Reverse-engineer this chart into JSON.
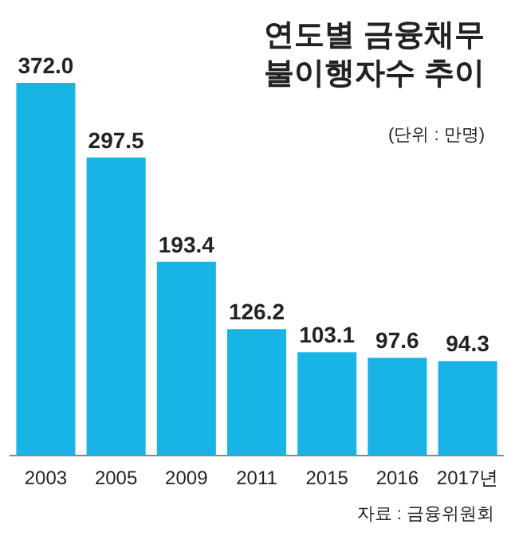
{
  "chart_data": {
    "type": "bar",
    "title": "연도별 금융채무\n불이행자수 추이",
    "subtitle": "(단위 : 만명)",
    "categories": [
      "2003",
      "2005",
      "2009",
      "2011",
      "2015",
      "2016",
      "2017년"
    ],
    "values": [
      372.0,
      297.5,
      193.4,
      126.2,
      103.1,
      97.6,
      94.3
    ],
    "value_labels": [
      "372.0",
      "297.5",
      "193.4",
      "126.2",
      "103.1",
      "97.6",
      "94.3"
    ],
    "color": "#19b4e6",
    "annotations": [
      "자료 : 금융위원회"
    ]
  }
}
